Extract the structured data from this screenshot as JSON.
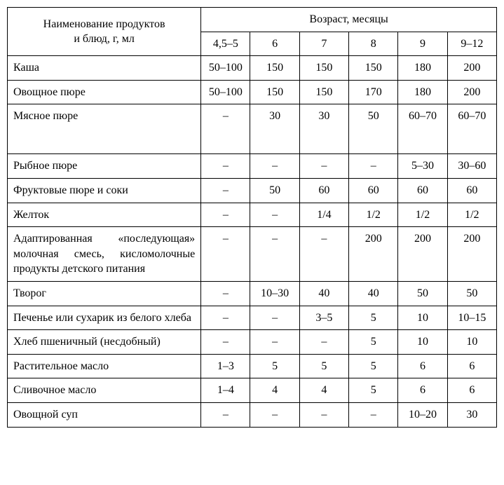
{
  "table": {
    "header": {
      "name_col_line1": "Наименование продуктов",
      "name_col_line2": "и блюд, г, мл",
      "age_group": "Возраст, месяцы",
      "ages": [
        "4,5–5",
        "6",
        "7",
        "8",
        "9",
        "9–12"
      ]
    },
    "rows": [
      {
        "name": "Каша",
        "vals": [
          "50–100",
          "150",
          "150",
          "150",
          "180",
          "200"
        ],
        "tall": false
      },
      {
        "name": "Овощное пюре",
        "vals": [
          "50–100",
          "150",
          "150",
          "170",
          "180",
          "200"
        ],
        "tall": false
      },
      {
        "name": "Мясное пюре",
        "vals": [
          "–",
          "30",
          "30",
          "50",
          "60–70",
          "60–70"
        ],
        "tall": true
      },
      {
        "name": "Рыбное пюре",
        "vals": [
          "–",
          "–",
          "–",
          "–",
          "5–30",
          "30–60"
        ],
        "tall": false
      },
      {
        "name": "Фруктовые пюре и соки",
        "vals": [
          "–",
          "50",
          "60",
          "60",
          "60",
          "60"
        ],
        "tall": false
      },
      {
        "name": "Желток",
        "vals": [
          "–",
          "–",
          "1/4",
          "1/2",
          "1/2",
          "1/2"
        ],
        "tall": false
      },
      {
        "name": "Адаптированная «последу­ющая» молочная смесь, кис­ломолочные продукты дет­ского питания",
        "vals": [
          "–",
          "–",
          "–",
          "200",
          "200",
          "200"
        ],
        "tall": false
      },
      {
        "name": "Творог",
        "vals": [
          "–",
          "10–30",
          "40",
          "40",
          "50",
          "50"
        ],
        "tall": false
      },
      {
        "name": "Печенье или сухарик из бе­лого хлеба",
        "vals": [
          "–",
          "–",
          "3–5",
          "5",
          "10",
          "10–15"
        ],
        "tall": false
      },
      {
        "name": "Хлеб пшеничный (несдоб­ный)",
        "vals": [
          "–",
          "–",
          "–",
          "5",
          "10",
          "10"
        ],
        "tall": false
      },
      {
        "name": "Растительное масло",
        "vals": [
          "1–3",
          "5",
          "5",
          "5",
          "6",
          "6"
        ],
        "tall": false
      },
      {
        "name": "Сливочное масло",
        "vals": [
          "1–4",
          "4",
          "4",
          "5",
          "6",
          "6"
        ],
        "tall": false
      },
      {
        "name": "Овощной суп",
        "vals": [
          "–",
          "–",
          "–",
          "–",
          "10–20",
          "30"
        ],
        "tall": false
      }
    ]
  },
  "style": {
    "font_family": "Times New Roman",
    "font_size_pt": 12,
    "border_color": "#000000",
    "background": "#ffffff",
    "text_color": "#000000"
  }
}
